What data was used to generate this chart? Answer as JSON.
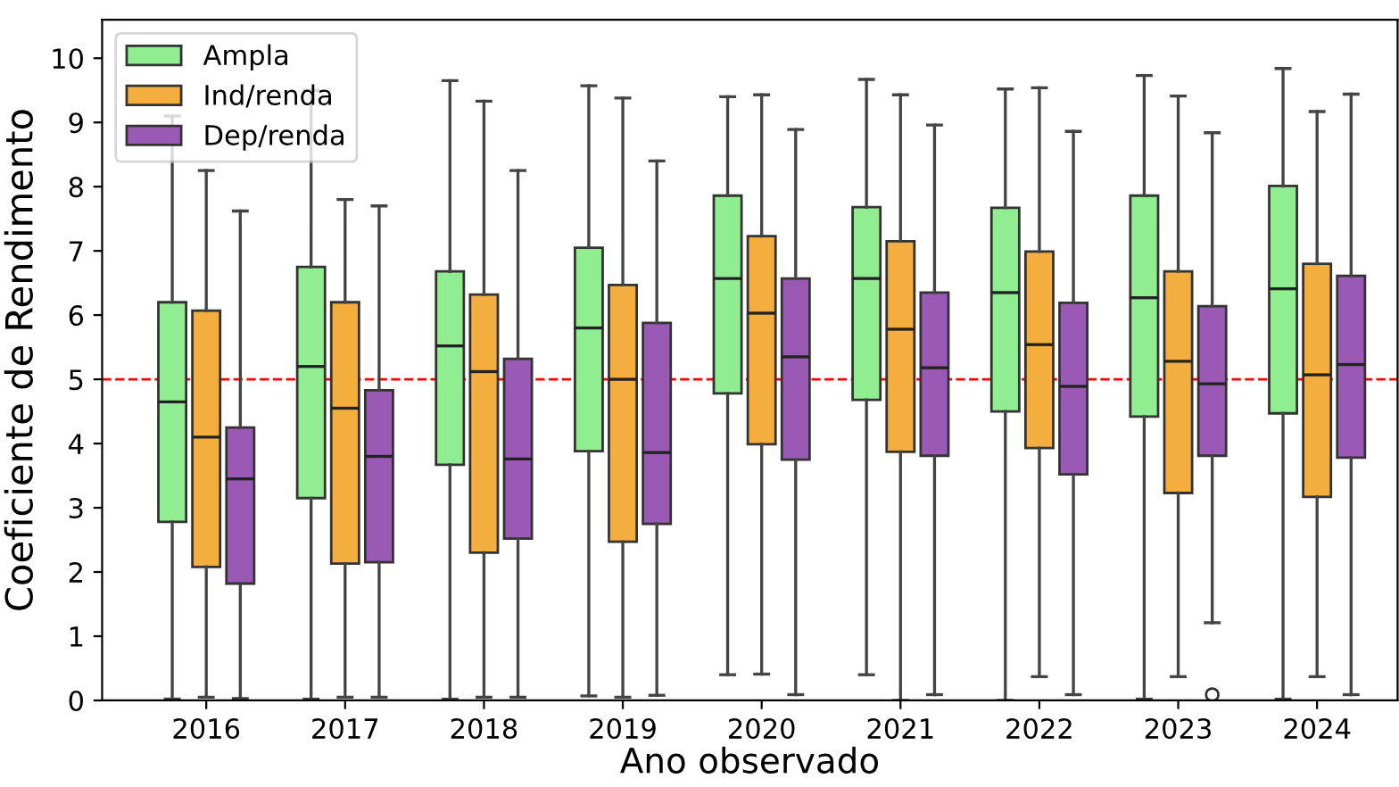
{
  "chart_data": {
    "type": "box",
    "xlabel": "Ano observado",
    "ylabel": "Coeficiente de Rendimento",
    "categories": [
      "2016",
      "2017",
      "2018",
      "2019",
      "2020",
      "2021",
      "2022",
      "2023",
      "2024"
    ],
    "ylim": [
      0,
      10.6
    ],
    "yticks": [
      0,
      1,
      2,
      3,
      4,
      5,
      6,
      7,
      8,
      9,
      10
    ],
    "grid": false,
    "legend": "top left",
    "ref_lines": [
      {
        "axis": "y",
        "value": 5,
        "color": "#ff0000",
        "line_style": "dashed"
      }
    ],
    "series": [
      {
        "name": "Ampla",
        "color": "#90ee90",
        "boxes": [
          {
            "low": 0.02,
            "q1": 2.78,
            "median": 4.65,
            "q3": 6.2,
            "high": 9.1
          },
          {
            "low": 0.02,
            "q1": 3.15,
            "median": 5.2,
            "q3": 6.75,
            "high": 9.5
          },
          {
            "low": 0.02,
            "q1": 3.67,
            "median": 5.52,
            "q3": 6.68,
            "high": 9.65
          },
          {
            "low": 0.07,
            "q1": 3.88,
            "median": 5.8,
            "q3": 7.05,
            "high": 9.57
          },
          {
            "low": 0.4,
            "q1": 4.78,
            "median": 6.57,
            "q3": 7.86,
            "high": 9.4
          },
          {
            "low": 0.4,
            "q1": 4.68,
            "median": 6.57,
            "q3": 7.68,
            "high": 9.67
          },
          {
            "low": 0.0,
            "q1": 4.5,
            "median": 6.35,
            "q3": 7.67,
            "high": 9.52
          },
          {
            "low": 0.02,
            "q1": 4.42,
            "median": 6.27,
            "q3": 7.86,
            "high": 9.73
          },
          {
            "low": 0.02,
            "q1": 4.47,
            "median": 6.41,
            "q3": 8.01,
            "high": 9.84
          }
        ]
      },
      {
        "name": "Ind/renda",
        "color": "#f4ae3e",
        "boxes": [
          {
            "low": 0.05,
            "q1": 2.08,
            "median": 4.1,
            "q3": 6.07,
            "high": 8.25
          },
          {
            "low": 0.05,
            "q1": 2.13,
            "median": 4.55,
            "q3": 6.2,
            "high": 7.8
          },
          {
            "low": 0.05,
            "q1": 2.3,
            "median": 5.12,
            "q3": 6.32,
            "high": 9.33
          },
          {
            "low": 0.05,
            "q1": 2.47,
            "median": 5.0,
            "q3": 6.47,
            "high": 9.38
          },
          {
            "low": 0.41,
            "q1": 3.99,
            "median": 6.03,
            "q3": 7.23,
            "high": 9.43
          },
          {
            "low": 0.0,
            "q1": 3.87,
            "median": 5.78,
            "q3": 7.15,
            "high": 9.43
          },
          {
            "low": 0.37,
            "q1": 3.93,
            "median": 5.54,
            "q3": 6.99,
            "high": 9.54
          },
          {
            "low": 0.37,
            "q1": 3.23,
            "median": 5.28,
            "q3": 6.68,
            "high": 9.41
          },
          {
            "low": 0.37,
            "q1": 3.17,
            "median": 5.07,
            "q3": 6.8,
            "high": 9.17
          }
        ]
      },
      {
        "name": "Dep/renda",
        "color": "#9b59b6",
        "boxes": [
          {
            "low": 0.03,
            "q1": 1.82,
            "median": 3.45,
            "q3": 4.25,
            "high": 7.62
          },
          {
            "low": 0.05,
            "q1": 2.15,
            "median": 3.8,
            "q3": 4.83,
            "high": 7.7
          },
          {
            "low": 0.05,
            "q1": 2.52,
            "median": 3.76,
            "q3": 5.32,
            "high": 8.25
          },
          {
            "low": 0.08,
            "q1": 2.75,
            "median": 3.86,
            "q3": 5.88,
            "high": 8.4
          },
          {
            "low": 0.09,
            "q1": 3.75,
            "median": 5.35,
            "q3": 6.57,
            "high": 8.89
          },
          {
            "low": 0.09,
            "q1": 3.81,
            "median": 5.18,
            "q3": 6.35,
            "high": 8.96
          },
          {
            "low": 0.09,
            "q1": 3.52,
            "median": 4.89,
            "q3": 6.19,
            "high": 8.86
          },
          {
            "low": 1.21,
            "q1": 3.81,
            "median": 4.93,
            "q3": 6.14,
            "high": 8.84,
            "outliers": [
              0.09
            ]
          },
          {
            "low": 0.09,
            "q1": 3.78,
            "median": 5.23,
            "q3": 6.61,
            "high": 9.44
          }
        ]
      }
    ]
  }
}
